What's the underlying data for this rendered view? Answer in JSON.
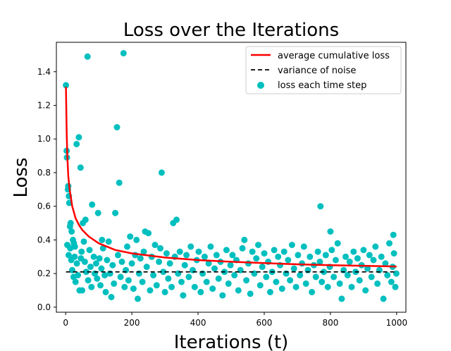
{
  "chart_data": {
    "type": "scatter",
    "title": "Loss over the Iterations",
    "xlabel": "Iterations (t)",
    "ylabel": "Loss",
    "xlim": [
      -28,
      1028
    ],
    "ylim": [
      -0.03,
      1.575
    ],
    "xticks": [
      0,
      200,
      400,
      600,
      800,
      1000
    ],
    "yticks": [
      0.0,
      0.2,
      0.4,
      0.6,
      0.8,
      1.0,
      1.2,
      1.4
    ],
    "xtick_labels": [
      "0",
      "200",
      "400",
      "600",
      "800",
      "1000"
    ],
    "ytick_labels": [
      "0.0",
      "0.2",
      "0.4",
      "0.6",
      "0.8",
      "1.0",
      "1.2",
      "1.4"
    ],
    "grid": false,
    "legend_position": "top-right",
    "series": [
      {
        "name": "average cumulative loss",
        "kind": "line",
        "color": "#ff0000",
        "x": [
          1,
          3,
          5,
          8,
          12,
          16,
          20,
          30,
          40,
          50,
          70,
          100,
          150,
          200,
          300,
          400,
          500,
          600,
          700,
          800,
          900,
          1000
        ],
        "y": [
          1.31,
          1.04,
          0.9,
          0.78,
          0.7,
          0.65,
          0.6,
          0.53,
          0.49,
          0.46,
          0.42,
          0.38,
          0.34,
          0.32,
          0.295,
          0.28,
          0.27,
          0.262,
          0.255,
          0.25,
          0.246,
          0.242
        ]
      },
      {
        "name": "variance of noise",
        "kind": "dashed-line",
        "color": "#000000",
        "x": [
          1,
          1000
        ],
        "y": [
          0.21,
          0.21
        ]
      },
      {
        "name": "loss each time step",
        "kind": "scatter",
        "color": "#00bfbf",
        "points": [
          [
            1,
            1.32
          ],
          [
            3,
            0.93
          ],
          [
            4,
            0.89
          ],
          [
            7,
            0.7
          ],
          [
            8,
            0.72
          ],
          [
            10,
            0.66
          ],
          [
            11,
            0.62
          ],
          [
            13,
            0.48
          ],
          [
            15,
            0.5
          ],
          [
            18,
            0.45
          ],
          [
            22,
            0.4
          ],
          [
            25,
            0.38
          ],
          [
            28,
            0.36
          ],
          [
            33,
            0.97
          ],
          [
            40,
            1.01
          ],
          [
            45,
            0.83
          ],
          [
            52,
            0.5
          ],
          [
            60,
            0.52
          ],
          [
            66,
            1.49
          ],
          [
            80,
            0.61
          ],
          [
            98,
            0.56
          ],
          [
            110,
            0.4
          ],
          [
            150,
            0.56
          ],
          [
            155,
            1.07
          ],
          [
            162,
            0.74
          ],
          [
            175,
            1.51
          ],
          [
            240,
            0.45
          ],
          [
            250,
            0.44
          ],
          [
            290,
            0.8
          ],
          [
            325,
            0.5
          ],
          [
            335,
            0.52
          ],
          [
            770,
            0.6
          ],
          [
            800,
            0.45
          ],
          [
            990,
            0.43
          ],
          [
            5,
            0.37
          ],
          [
            9,
            0.31
          ],
          [
            14,
            0.35
          ],
          [
            17,
            0.28
          ],
          [
            20,
            0.22
          ],
          [
            24,
            0.18
          ],
          [
            27,
            0.3
          ],
          [
            30,
            0.15
          ],
          [
            34,
            0.26
          ],
          [
            37,
            0.19
          ],
          [
            42,
            0.1
          ],
          [
            46,
            0.29
          ],
          [
            48,
            0.33
          ],
          [
            50,
            0.1
          ],
          [
            55,
            0.39
          ],
          [
            58,
            0.27
          ],
          [
            62,
            0.21
          ],
          [
            68,
            0.16
          ],
          [
            72,
            0.34
          ],
          [
            75,
            0.24
          ],
          [
            78,
            0.12
          ],
          [
            85,
            0.3
          ],
          [
            88,
            0.2
          ],
          [
            92,
            0.26
          ],
          [
            95,
            0.17
          ],
          [
            102,
            0.29
          ],
          [
            105,
            0.13
          ],
          [
            108,
            0.23
          ],
          [
            113,
            0.35
          ],
          [
            118,
            0.19
          ],
          [
            121,
            0.09
          ],
          [
            125,
            0.28
          ],
          [
            130,
            0.39
          ],
          [
            134,
            0.2
          ],
          [
            138,
            0.06
          ],
          [
            142,
            0.25
          ],
          [
            146,
            0.14
          ],
          [
            158,
            0.31
          ],
          [
            166,
            0.18
          ],
          [
            170,
            0.27
          ],
          [
            178,
            0.12
          ],
          [
            182,
            0.22
          ],
          [
            186,
            0.36
          ],
          [
            190,
            0.16
          ],
          [
            195,
            0.42
          ],
          [
            200,
            0.26
          ],
          [
            205,
            0.11
          ],
          [
            210,
            0.31
          ],
          [
            214,
            0.4
          ],
          [
            218,
            0.05
          ],
          [
            222,
            0.2
          ],
          [
            226,
            0.29
          ],
          [
            232,
            0.15
          ],
          [
            236,
            0.33
          ],
          [
            245,
            0.24
          ],
          [
            255,
            0.1
          ],
          [
            260,
            0.3
          ],
          [
            265,
            0.19
          ],
          [
            270,
            0.37
          ],
          [
            275,
            0.13
          ],
          [
            282,
            0.27
          ],
          [
            286,
            0.35
          ],
          [
            295,
            0.21
          ],
          [
            300,
            0.09
          ],
          [
            305,
            0.32
          ],
          [
            310,
            0.17
          ],
          [
            315,
            0.26
          ],
          [
            320,
            0.12
          ],
          [
            330,
            0.3
          ],
          [
            340,
            0.2
          ],
          [
            345,
            0.33
          ],
          [
            350,
            0.15
          ],
          [
            355,
            0.07
          ],
          [
            360,
            0.25
          ],
          [
            365,
            0.31
          ],
          [
            372,
            0.18
          ],
          [
            378,
            0.36
          ],
          [
            384,
            0.22
          ],
          [
            390,
            0.12
          ],
          [
            396,
            0.28
          ],
          [
            402,
            0.33
          ],
          [
            408,
            0.09
          ],
          [
            414,
            0.2
          ],
          [
            420,
            0.3
          ],
          [
            426,
            0.15
          ],
          [
            432,
            0.26
          ],
          [
            438,
            0.36
          ],
          [
            444,
            0.11
          ],
          [
            450,
            0.23
          ],
          [
            456,
            0.31
          ],
          [
            462,
            0.17
          ],
          [
            468,
            0.27
          ],
          [
            474,
            0.07
          ],
          [
            480,
            0.21
          ],
          [
            486,
            0.34
          ],
          [
            492,
            0.14
          ],
          [
            498,
            0.25
          ],
          [
            504,
            0.31
          ],
          [
            510,
            0.19
          ],
          [
            516,
            0.28
          ],
          [
            522,
            0.1
          ],
          [
            528,
            0.22
          ],
          [
            534,
            0.35
          ],
          [
            540,
            0.4
          ],
          [
            546,
            0.16
          ],
          [
            552,
            0.26
          ],
          [
            558,
            0.08
          ],
          [
            564,
            0.33
          ],
          [
            570,
            0.2
          ],
          [
            576,
            0.29
          ],
          [
            582,
            0.37
          ],
          [
            588,
            0.13
          ],
          [
            594,
            0.24
          ],
          [
            600,
            0.32
          ],
          [
            606,
            0.18
          ],
          [
            612,
            0.27
          ],
          [
            618,
            0.09
          ],
          [
            624,
            0.21
          ],
          [
            630,
            0.34
          ],
          [
            636,
            0.15
          ],
          [
            642,
            0.3
          ],
          [
            648,
            0.25
          ],
          [
            654,
            0.11
          ],
          [
            660,
            0.33
          ],
          [
            666,
            0.2
          ],
          [
            672,
            0.28
          ],
          [
            678,
            0.16
          ],
          [
            684,
            0.37
          ],
          [
            690,
            0.23
          ],
          [
            696,
            0.12
          ],
          [
            702,
            0.31
          ],
          [
            708,
            0.19
          ],
          [
            714,
            0.26
          ],
          [
            720,
            0.36
          ],
          [
            726,
            0.14
          ],
          [
            732,
            0.22
          ],
          [
            738,
            0.3
          ],
          [
            744,
            0.09
          ],
          [
            750,
            0.25
          ],
          [
            756,
            0.18
          ],
          [
            762,
            0.33
          ],
          [
            768,
            0.27
          ],
          [
            774,
            0.15
          ],
          [
            780,
            0.21
          ],
          [
            786,
            0.31
          ],
          [
            792,
            0.12
          ],
          [
            798,
            0.24
          ],
          [
            804,
            0.34
          ],
          [
            810,
            0.18
          ],
          [
            816,
            0.28
          ],
          [
            822,
            0.38
          ],
          [
            828,
            0.14
          ],
          [
            834,
            0.05
          ],
          [
            840,
            0.22
          ],
          [
            846,
            0.3
          ],
          [
            852,
            0.19
          ],
          [
            858,
            0.27
          ],
          [
            864,
            0.12
          ],
          [
            870,
            0.33
          ],
          [
            876,
            0.21
          ],
          [
            882,
            0.29
          ],
          [
            888,
            0.16
          ],
          [
            894,
            0.25
          ],
          [
            900,
            0.34
          ],
          [
            906,
            0.1
          ],
          [
            912,
            0.23
          ],
          [
            918,
            0.31
          ],
          [
            924,
            0.18
          ],
          [
            930,
            0.28
          ],
          [
            936,
            0.36
          ],
          [
            942,
            0.14
          ],
          [
            948,
            0.22
          ],
          [
            954,
            0.3
          ],
          [
            960,
            0.05
          ],
          [
            966,
            0.26
          ],
          [
            972,
            0.19
          ],
          [
            978,
            0.38
          ],
          [
            984,
            0.15
          ],
          [
            988,
            0.24
          ],
          [
            992,
            0.32
          ],
          [
            996,
            0.12
          ],
          [
            999,
            0.2
          ]
        ]
      }
    ],
    "legend": [
      {
        "label": "average cumulative loss",
        "kind": "line",
        "color": "#ff0000"
      },
      {
        "label": "variance of noise",
        "kind": "dashed-line",
        "color": "#000000"
      },
      {
        "label": "loss each time step",
        "kind": "marker",
        "color": "#00bfbf"
      }
    ]
  }
}
